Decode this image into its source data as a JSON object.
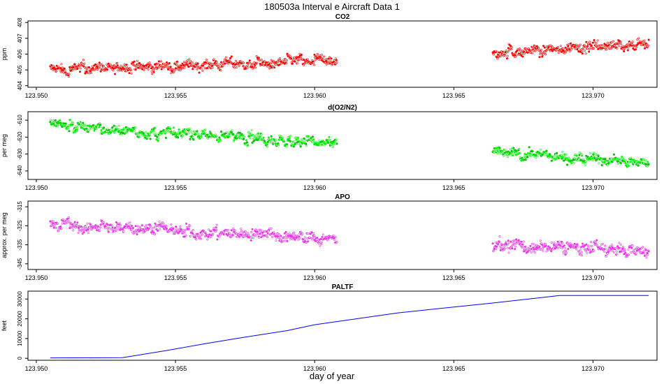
{
  "figure": {
    "title": "180503a   Interval e Aircraft Data 1",
    "xlabel": "day of year"
  },
  "colors": {
    "co2": "#ff0000",
    "o2n2_light": "#00ff00",
    "o2n2_dark": "#008800",
    "apo": "#ee33ee",
    "paltf": "#0000ff"
  },
  "chart_data": [
    {
      "type": "scatter",
      "title": "CO2",
      "ylabel": "ppm",
      "xlim": [
        123.9497,
        123.9723
      ],
      "ylim": [
        403.9,
        408.1
      ],
      "xticks": [
        123.95,
        123.955,
        123.96,
        123.965,
        123.97
      ],
      "xtick_labels": [
        "123.950",
        "123.955",
        "123.960",
        "123.965",
        "123.970"
      ],
      "yticks": [
        404,
        405,
        406,
        407,
        408
      ],
      "ytick_labels": [
        "404",
        "405",
        "406",
        "407",
        "408"
      ],
      "segments": [
        {
          "x_start": 123.9505,
          "x_end": 123.9608,
          "level_start": 405.0,
          "level_end": 405.6
        },
        {
          "x_start": 123.9664,
          "x_end": 123.972,
          "level_start": 406.1,
          "level_end": 406.7
        }
      ],
      "points": [
        [
          123.9505,
          405.0
        ],
        [
          123.952,
          405.2
        ],
        [
          123.9535,
          405.0
        ],
        [
          123.955,
          405.2
        ],
        [
          123.957,
          405.3
        ],
        [
          123.959,
          405.5
        ],
        [
          123.9608,
          405.6
        ],
        [
          123.9664,
          406.1
        ],
        [
          123.968,
          406.4
        ],
        [
          123.97,
          406.7
        ],
        [
          123.972,
          406.6
        ]
      ]
    },
    {
      "type": "scatter",
      "title": "d(O2/N2)",
      "ylabel": "per meg",
      "xlim": [
        123.9497,
        123.9723
      ],
      "ylim": [
        -645,
        -605
      ],
      "xticks": [
        123.95,
        123.955,
        123.96,
        123.965,
        123.97
      ],
      "xtick_labels": [
        "123.950",
        "123.955",
        "123.960",
        "123.965",
        "123.970"
      ],
      "yticks": [
        -640,
        -630,
        -620,
        -610
      ],
      "ytick_labels": [
        "-640",
        "-630",
        "-620",
        "-610"
      ],
      "segments": [
        {
          "x_start": 123.9505,
          "x_end": 123.9608,
          "level_start": -613,
          "level_end": -624
        },
        {
          "x_start": 123.9664,
          "x_end": 123.972,
          "level_start": -628,
          "level_end": -636
        }
      ],
      "points": [
        [
          123.9505,
          -613
        ],
        [
          123.952,
          -615
        ],
        [
          123.954,
          -618
        ],
        [
          123.956,
          -619
        ],
        [
          123.958,
          -621
        ],
        [
          123.9608,
          -624
        ],
        [
          123.9664,
          -628
        ],
        [
          123.968,
          -633
        ],
        [
          123.97,
          -636
        ],
        [
          123.972,
          -635
        ]
      ]
    },
    {
      "type": "scatter",
      "title": "APO",
      "ylabel": "approx. per meg",
      "xlim": [
        123.9497,
        123.9723
      ],
      "ylim": [
        -348,
        -312
      ],
      "xticks": [
        123.95,
        123.955,
        123.96,
        123.965,
        123.97
      ],
      "xtick_labels": [
        "123.950",
        "123.955",
        "123.960",
        "123.965",
        "123.970"
      ],
      "yticks": [
        -345,
        -335,
        -325,
        -315
      ],
      "ytick_labels": [
        "-345",
        "-335",
        "-325",
        "-315"
      ],
      "segments": [
        {
          "x_start": 123.9505,
          "x_end": 123.9608,
          "level_start": -324,
          "level_end": -332
        },
        {
          "x_start": 123.9664,
          "x_end": 123.972,
          "level_start": -335,
          "level_end": -338
        }
      ],
      "points": [
        [
          123.9505,
          -324
        ],
        [
          123.952,
          -326
        ],
        [
          123.954,
          -328
        ],
        [
          123.956,
          -330
        ],
        [
          123.958,
          -331
        ],
        [
          123.9608,
          -332
        ],
        [
          123.9664,
          -335
        ],
        [
          123.968,
          -338
        ],
        [
          123.97,
          -338
        ],
        [
          123.972,
          -337
        ]
      ]
    },
    {
      "type": "line",
      "title": "PALTF",
      "ylabel": "feet",
      "xlim": [
        123.9497,
        123.9723
      ],
      "ylim": [
        -1000,
        34000
      ],
      "xticks": [
        123.95,
        123.955,
        123.96,
        123.965,
        123.97
      ],
      "xtick_labels": [
        "123.950",
        "123.955",
        "123.960",
        "123.965",
        "123.970"
      ],
      "yticks": [
        0,
        10000,
        20000,
        30000
      ],
      "ytick_labels": [
        "0",
        "10000",
        "20000",
        "30000"
      ],
      "series": [
        {
          "name": "PALTF",
          "x": [
            123.9505,
            123.9531,
            123.9547,
            123.9561,
            123.9574,
            123.959,
            123.96,
            123.9615,
            123.963,
            123.9647,
            123.9664,
            123.968,
            123.9688,
            123.97,
            123.972
          ],
          "y": [
            200,
            300,
            4000,
            7500,
            10500,
            14000,
            17000,
            20000,
            23000,
            25500,
            28000,
            30500,
            31800,
            31800,
            31800
          ]
        }
      ]
    }
  ]
}
